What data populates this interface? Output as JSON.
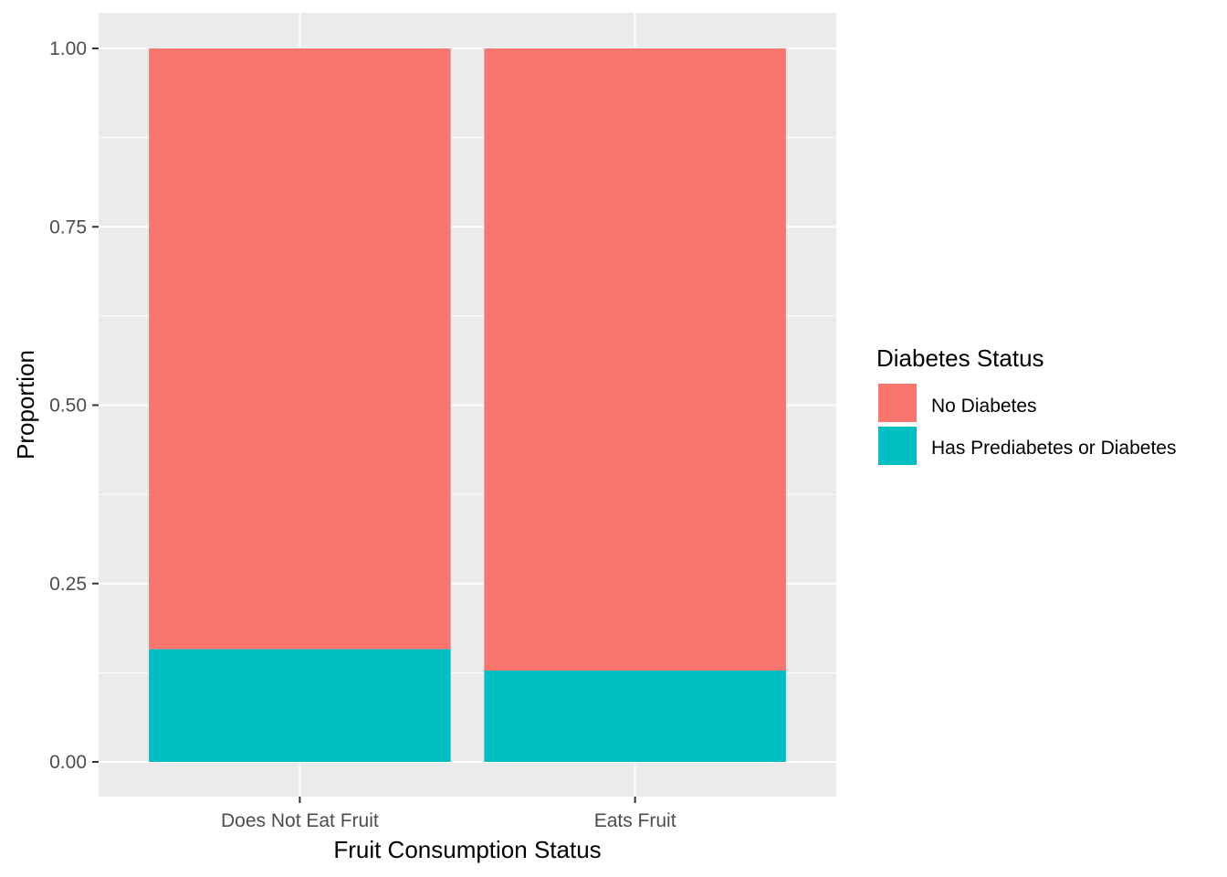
{
  "chart_data": {
    "type": "bar",
    "stacked": true,
    "xlabel": "Fruit Consumption Status",
    "ylabel": "Proportion",
    "ylim": [
      0,
      1.05
    ],
    "yticks": [
      0.0,
      0.25,
      0.5,
      0.75,
      1.0
    ],
    "ytick_labels": [
      "0.00",
      "0.25",
      "0.50",
      "0.75",
      "1.00"
    ],
    "categories": [
      "Does Not Eat Fruit",
      "Eats Fruit"
    ],
    "series": [
      {
        "name": "Has Prediabetes or Diabetes",
        "color": "#00BFC4",
        "values": [
          0.158,
          0.128
        ]
      },
      {
        "name": "No Diabetes",
        "color": "#F8766D",
        "values": [
          0.842,
          0.872
        ]
      }
    ],
    "legend": {
      "title": "Diabetes Status",
      "position": "right",
      "entries": [
        {
          "label": "No Diabetes",
          "color": "#F8766D"
        },
        {
          "label": "Has Prediabetes or Diabetes",
          "color": "#00BFC4"
        }
      ]
    },
    "grid": true,
    "panel_background": "#EBEBEB"
  }
}
